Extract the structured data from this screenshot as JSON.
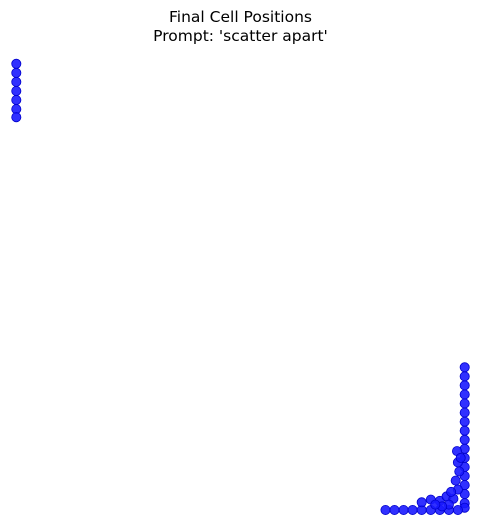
{
  "chart_data": {
    "type": "scatter",
    "title_line1": "Final Cell Positions",
    "title_line2": "Prompt: 'scatter apart'",
    "xlabel": "",
    "ylabel": "",
    "axes_visible": false,
    "grid": false,
    "xlim": [
      0,
      100
    ],
    "ylim": [
      0,
      100
    ],
    "marker_color": "#1a1aff",
    "marker_edge_color": "#0000cc",
    "points": [
      {
        "x": 0.5,
        "y": 98.5
      },
      {
        "x": 0.5,
        "y": 96.5
      },
      {
        "x": 0.5,
        "y": 94.5
      },
      {
        "x": 0.5,
        "y": 92.5
      },
      {
        "x": 0.5,
        "y": 90.5
      },
      {
        "x": 0.5,
        "y": 88.5
      },
      {
        "x": 0.5,
        "y": 86.7
      },
      {
        "x": 99.5,
        "y": 31.5
      },
      {
        "x": 99.5,
        "y": 29.5
      },
      {
        "x": 99.5,
        "y": 27.5
      },
      {
        "x": 99.5,
        "y": 25.5
      },
      {
        "x": 99.5,
        "y": 23.5
      },
      {
        "x": 99.5,
        "y": 21.5
      },
      {
        "x": 99.5,
        "y": 19.5
      },
      {
        "x": 99.5,
        "y": 17.5
      },
      {
        "x": 99.5,
        "y": 15.5
      },
      {
        "x": 99.5,
        "y": 13.5
      },
      {
        "x": 99.5,
        "y": 11.5
      },
      {
        "x": 99.5,
        "y": 9.5
      },
      {
        "x": 99.5,
        "y": 7.5
      },
      {
        "x": 99.5,
        "y": 5.5
      },
      {
        "x": 99.5,
        "y": 3.5
      },
      {
        "x": 99.5,
        "y": 1.5
      },
      {
        "x": 99.5,
        "y": 0.5
      },
      {
        "x": 82.0,
        "y": 0.0
      },
      {
        "x": 84.0,
        "y": 0.0
      },
      {
        "x": 86.0,
        "y": 0.0
      },
      {
        "x": 88.0,
        "y": 0.0
      },
      {
        "x": 90.0,
        "y": 0.0
      },
      {
        "x": 92.0,
        "y": 0.0
      },
      {
        "x": 94.0,
        "y": 0.0
      },
      {
        "x": 96.0,
        "y": 0.0
      },
      {
        "x": 98.0,
        "y": 0.0
      },
      {
        "x": 90.0,
        "y": 1.7
      },
      {
        "x": 92.0,
        "y": 2.3
      },
      {
        "x": 94.0,
        "y": 2.0
      },
      {
        "x": 95.5,
        "y": 3.0
      },
      {
        "x": 97.0,
        "y": 2.5
      },
      {
        "x": 98.0,
        "y": 4.5
      },
      {
        "x": 96.0,
        "y": 1.2
      },
      {
        "x": 94.5,
        "y": 0.8
      },
      {
        "x": 97.5,
        "y": 6.5
      },
      {
        "x": 98.3,
        "y": 8.5
      },
      {
        "x": 98.0,
        "y": 10.5
      },
      {
        "x": 97.8,
        "y": 13.0
      },
      {
        "x": 98.6,
        "y": 11.5
      },
      {
        "x": 96.5,
        "y": 4.0
      },
      {
        "x": 93.0,
        "y": 1.2
      }
    ]
  }
}
